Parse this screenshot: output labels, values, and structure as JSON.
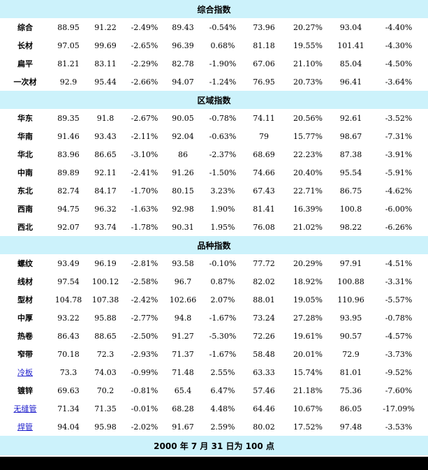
{
  "sections": [
    {
      "title": "综合指数",
      "rows": [
        {
          "name": "综合",
          "vals": [
            "88.95",
            "91.22",
            "-2.49%",
            "89.43",
            "-0.54%",
            "73.96",
            "20.27%",
            "93.04",
            "-4.40%"
          ]
        },
        {
          "name": "长材",
          "vals": [
            "97.05",
            "99.69",
            "-2.65%",
            "96.39",
            "0.68%",
            "81.18",
            "19.55%",
            "101.41",
            "-4.30%"
          ]
        },
        {
          "name": "扁平",
          "vals": [
            "81.21",
            "83.11",
            "-2.29%",
            "82.78",
            "-1.90%",
            "67.06",
            "21.10%",
            "85.04",
            "-4.50%"
          ]
        },
        {
          "name": "一次材",
          "vals": [
            "92.9",
            "95.44",
            "-2.66%",
            "94.07",
            "-1.24%",
            "76.95",
            "20.73%",
            "96.41",
            "-3.64%"
          ]
        }
      ]
    },
    {
      "title": "区域指数",
      "rows": [
        {
          "name": "华东",
          "vals": [
            "89.35",
            "91.8",
            "-2.67%",
            "90.05",
            "-0.78%",
            "74.11",
            "20.56%",
            "92.61",
            "-3.52%"
          ]
        },
        {
          "name": "华南",
          "vals": [
            "91.46",
            "93.43",
            "-2.11%",
            "92.04",
            "-0.63%",
            "79",
            "15.77%",
            "98.67",
            "-7.31%"
          ]
        },
        {
          "name": "华北",
          "vals": [
            "83.96",
            "86.65",
            "-3.10%",
            "86",
            "-2.37%",
            "68.69",
            "22.23%",
            "87.38",
            "-3.91%"
          ]
        },
        {
          "name": "中南",
          "vals": [
            "89.89",
            "92.11",
            "-2.41%",
            "91.26",
            "-1.50%",
            "74.66",
            "20.40%",
            "95.54",
            "-5.91%"
          ]
        },
        {
          "name": "东北",
          "vals": [
            "82.74",
            "84.17",
            "-1.70%",
            "80.15",
            "3.23%",
            "67.43",
            "22.71%",
            "86.75",
            "-4.62%"
          ]
        },
        {
          "name": "西南",
          "vals": [
            "94.75",
            "96.32",
            "-1.63%",
            "92.98",
            "1.90%",
            "81.41",
            "16.39%",
            "100.8",
            "-6.00%"
          ]
        },
        {
          "name": "西北",
          "vals": [
            "92.07",
            "93.74",
            "-1.78%",
            "90.31",
            "1.95%",
            "76.08",
            "21.02%",
            "98.22",
            "-6.26%"
          ]
        }
      ]
    },
    {
      "title": "品种指数",
      "rows": [
        {
          "name": "螺纹",
          "vals": [
            "93.49",
            "96.19",
            "-2.81%",
            "93.58",
            "-0.10%",
            "77.72",
            "20.29%",
            "97.91",
            "-4.51%"
          ]
        },
        {
          "name": "线材",
          "vals": [
            "97.54",
            "100.12",
            "-2.58%",
            "96.7",
            "0.87%",
            "82.02",
            "18.92%",
            "100.88",
            "-3.31%"
          ]
        },
        {
          "name": "型材",
          "vals": [
            "104.78",
            "107.38",
            "-2.42%",
            "102.66",
            "2.07%",
            "88.01",
            "19.05%",
            "110.96",
            "-5.57%"
          ]
        },
        {
          "name": "中厚",
          "vals": [
            "93.22",
            "95.88",
            "-2.77%",
            "94.8",
            "-1.67%",
            "73.24",
            "27.28%",
            "93.95",
            "-0.78%"
          ]
        },
        {
          "name": "热卷",
          "vals": [
            "86.43",
            "88.65",
            "-2.50%",
            "91.27",
            "-5.30%",
            "72.26",
            "19.61%",
            "90.57",
            "-4.57%"
          ]
        },
        {
          "name": "窄带",
          "vals": [
            "70.18",
            "72.3",
            "-2.93%",
            "71.37",
            "-1.67%",
            "58.48",
            "20.01%",
            "72.9",
            "-3.73%"
          ]
        },
        {
          "name": "冷板",
          "link": true,
          "vals": [
            "73.3",
            "74.03",
            "-0.99%",
            "71.48",
            "2.55%",
            "63.33",
            "15.74%",
            "81.01",
            "-9.52%"
          ]
        },
        {
          "name": "镀锌",
          "vals": [
            "69.63",
            "70.2",
            "-0.81%",
            "65.4",
            "6.47%",
            "57.46",
            "21.18%",
            "75.36",
            "-7.60%"
          ]
        },
        {
          "name": "无缝管",
          "link": true,
          "vals": [
            "71.34",
            "71.35",
            "-0.01%",
            "68.28",
            "4.48%",
            "64.46",
            "10.67%",
            "86.05",
            "-17.09%"
          ]
        },
        {
          "name": "焊管",
          "link": true,
          "vals": [
            "94.04",
            "95.98",
            "-2.02%",
            "91.67",
            "2.59%",
            "80.02",
            "17.52%",
            "97.48",
            "-3.53%"
          ]
        }
      ]
    }
  ],
  "footer": "2000 年 7 月 31 日为 100 点",
  "colors": {
    "section_bg": "#ccf2fb",
    "negative": "#118811",
    "positive": "#dd1111",
    "link": "#2222cc"
  }
}
